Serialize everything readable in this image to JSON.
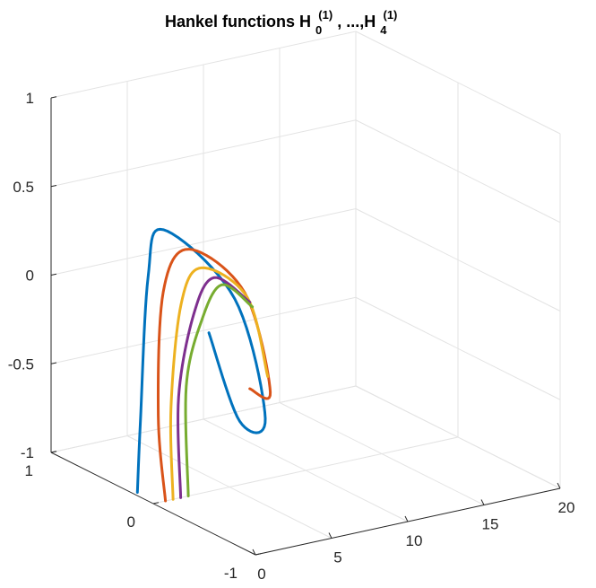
{
  "chart_data": {
    "type": "line",
    "title": {
      "prefix": "Hankel functions H",
      "sep": ", ...,H",
      "sub1": "0",
      "sup1": "(1)",
      "sub2": "4",
      "sup2": "(1)"
    },
    "view": "3d",
    "grid": true,
    "legend": "none",
    "xlim": [
      0,
      20
    ],
    "ylim": [
      -1,
      1
    ],
    "zlim": [
      -1,
      1
    ],
    "x_ticks": [
      "0",
      "5",
      "10",
      "15",
      "20"
    ],
    "y_ticks": [
      "-1",
      "0",
      "1"
    ],
    "z_ticks": [
      "-1",
      "-0.5",
      "0",
      "0.5",
      "1"
    ],
    "series": [
      {
        "order": 0,
        "color": "#0072BD",
        "x_range": [
          0.3,
          20
        ],
        "curve_points": [
          [
            0.3,
            0.2,
            -1.0
          ],
          [
            0.5,
            0.2,
            -0.6
          ],
          [
            1.0,
            0.2,
            0.2
          ],
          [
            2.0,
            0.2,
            0.45
          ],
          [
            3.0,
            -0.35,
            0.2
          ],
          [
            4.0,
            -0.5,
            -0.45
          ],
          [
            5.0,
            -0.1,
            -0.6
          ],
          [
            6.0,
            0.35,
            -0.25
          ]
        ]
      },
      {
        "order": 1,
        "color": "#D95319",
        "x_range": [
          0.8,
          20
        ],
        "curve_points": [
          [
            0.8,
            0.0,
            -1.0
          ],
          [
            1.0,
            0.1,
            -0.55
          ],
          [
            2.0,
            0.2,
            0.1
          ],
          [
            3.0,
            0.1,
            0.35
          ],
          [
            4.0,
            -0.3,
            0.2
          ],
          [
            5.0,
            -0.4,
            -0.35
          ],
          [
            6.0,
            -0.05,
            -0.45
          ]
        ]
      },
      {
        "order": 2,
        "color": "#EDB120",
        "x_range": [
          1.3,
          20
        ],
        "curve_points": [
          [
            1.3,
            0.0,
            -1.0
          ],
          [
            1.5,
            0.05,
            -0.5
          ],
          [
            2.5,
            0.1,
            0.05
          ],
          [
            3.5,
            0.05,
            0.25
          ],
          [
            4.5,
            -0.25,
            0.15
          ],
          [
            5.5,
            -0.3,
            -0.3
          ]
        ]
      },
      {
        "order": 3,
        "color": "#7E2F8E",
        "x_range": [
          1.8,
          20
        ],
        "curve_points": [
          [
            1.8,
            0.0,
            -1.0
          ],
          [
            2.0,
            0.05,
            -0.45
          ],
          [
            3.0,
            0.05,
            0.0
          ],
          [
            4.0,
            0.0,
            0.2
          ],
          [
            5.0,
            -0.2,
            0.1
          ]
        ]
      },
      {
        "order": 4,
        "color": "#77AC30",
        "x_range": [
          2.3,
          20
        ],
        "curve_points": [
          [
            2.3,
            0.0,
            -1.0
          ],
          [
            2.5,
            0.05,
            -0.4
          ],
          [
            3.5,
            0.05,
            -0.05
          ],
          [
            4.5,
            0.0,
            0.15
          ],
          [
            5.5,
            -0.15,
            0.05
          ]
        ]
      }
    ]
  }
}
